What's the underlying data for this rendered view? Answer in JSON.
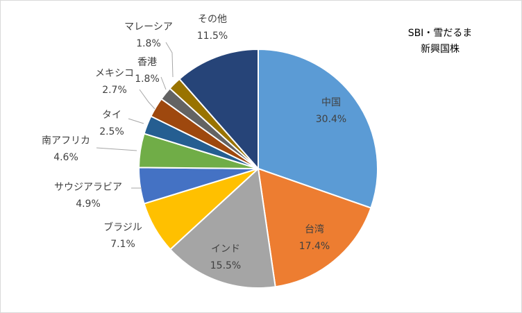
{
  "chart_data": {
    "type": "pie",
    "title_lines": [
      "SBI・雪だるま",
      "新興国株"
    ],
    "slices": [
      {
        "label": "中国",
        "value": 30.4,
        "display": "30.4%",
        "color": "#5b9bd5"
      },
      {
        "label": "台湾",
        "value": 17.4,
        "display": "17.4%",
        "color": "#ed7d31"
      },
      {
        "label": "インド",
        "value": 15.5,
        "display": "15.5%",
        "color": "#a5a5a5"
      },
      {
        "label": "ブラジル",
        "value": 7.1,
        "display": "7.1%",
        "color": "#ffc000"
      },
      {
        "label": "サウジアラビア",
        "value": 4.9,
        "display": "4.9%",
        "color": "#4472c4"
      },
      {
        "label": "南アフリカ",
        "value": 4.6,
        "display": "4.6%",
        "color": "#70ad47"
      },
      {
        "label": "タイ",
        "value": 2.5,
        "display": "2.5%",
        "color": "#255e91"
      },
      {
        "label": "メキシコ",
        "value": 2.7,
        "display": "2.7%",
        "color": "#9e480e"
      },
      {
        "label": "香港",
        "value": 1.8,
        "display": "1.8%",
        "color": "#636363"
      },
      {
        "label": "マレーシア",
        "value": 1.8,
        "display": "1.8%",
        "color": "#997300"
      },
      {
        "label": "その他",
        "value": 11.5,
        "display": "11.5%",
        "color": "#264478"
      }
    ]
  }
}
